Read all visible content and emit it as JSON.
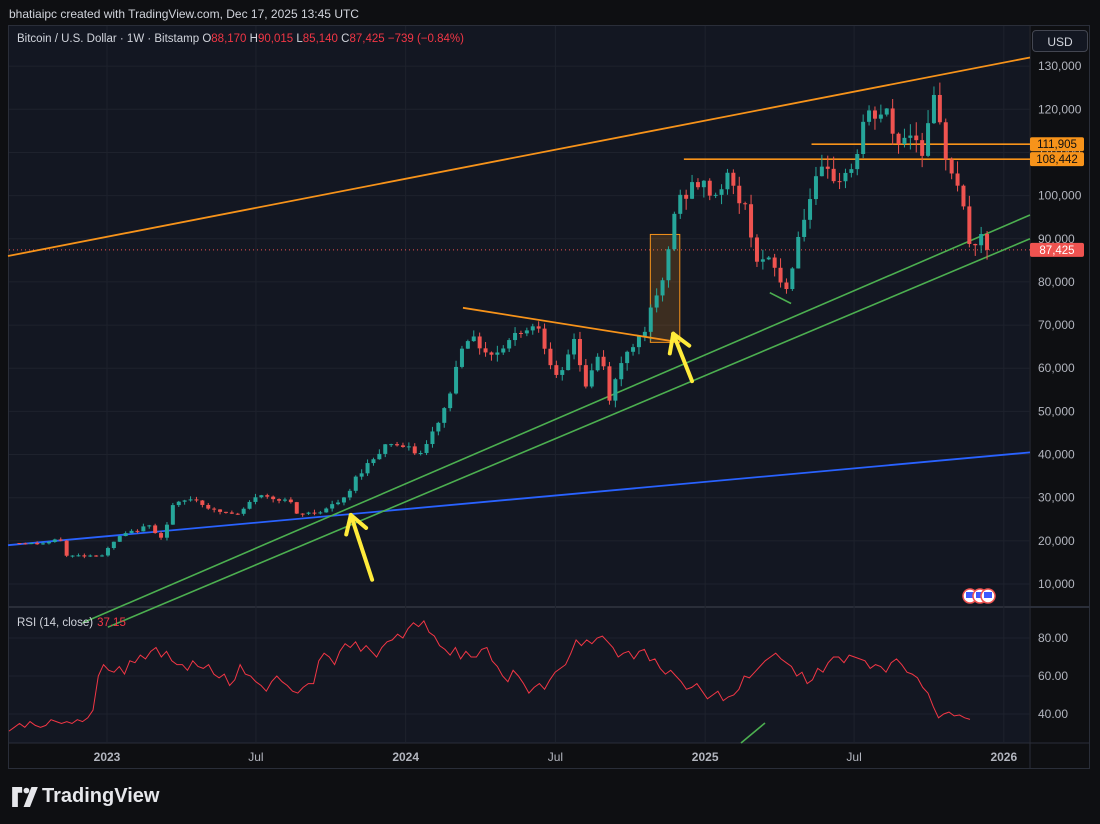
{
  "header": {
    "attribution": "bhatiaipc created with TradingView.com, Dec 17, 2025 13:45 UTC"
  },
  "legend": {
    "symbol": "Bitcoin / U.S. Dollar · 1W · Bitstamp",
    "o_label": "O",
    "o": "88,170",
    "h_label": "H",
    "h": "90,015",
    "l_label": "L",
    "l": "85,140",
    "c_label": "C",
    "c": "87,425",
    "change": "−739 (−0.84%)"
  },
  "currency_button": "USD",
  "rsi_legend": {
    "label": "RSI (14, close)",
    "value": "37.15"
  },
  "brand": {
    "name": "TradingView"
  },
  "colors": {
    "up": "#26a69a",
    "down": "#ef5350",
    "orange": "#f7931a",
    "green": "#4caf50",
    "blue": "#2962ff",
    "yellow": "#ffeb3b",
    "rsi": "#f23645"
  },
  "chart_data": {
    "type": "candlestick",
    "symbol": "Bitcoin / U.S. Dollar",
    "interval": "1W",
    "exchange": "Bitstamp",
    "price_axis": {
      "min": 0,
      "max": 135000,
      "ticks": [
        10000,
        20000,
        30000,
        40000,
        50000,
        60000,
        70000,
        80000,
        90000,
        100000,
        110000,
        120000,
        130000
      ],
      "tick_labels": [
        "10,000",
        "20,000",
        "30,000",
        "40,000",
        "50,000",
        "60,000",
        "70,000",
        "80,000",
        "90,000",
        "100,000",
        "110,000",
        "120,000",
        "130,000"
      ]
    },
    "time_axis": {
      "ticks": [
        "2022-12-31",
        "2023-07-01",
        "2023-12-31",
        "2024-07-01",
        "2024-12-31",
        "2025-07-01",
        "2025-12-31"
      ],
      "tick_labels": [
        "2023",
        "Jul",
        "2024",
        "Jul",
        "2025",
        "Jul",
        "2026"
      ]
    },
    "price_labels": [
      {
        "value": 111905,
        "label": "111,905",
        "color": "#f7931a"
      },
      {
        "value": 108442,
        "label": "108,442",
        "color": "#f7931a"
      },
      {
        "value": 87425,
        "label": "87,425",
        "color": "#ef5350"
      }
    ],
    "current_price": 87425,
    "path": [
      [
        "2022-09-15",
        19500
      ],
      [
        "2022-10-10",
        19300
      ],
      [
        "2022-11-05",
        20300
      ],
      [
        "2022-11-10",
        16500
      ],
      [
        "2022-12-25",
        16700
      ],
      [
        "2023-01-15",
        21000
      ],
      [
        "2023-02-20",
        23500
      ],
      [
        "2023-03-10",
        20500
      ],
      [
        "2023-03-20",
        28000
      ],
      [
        "2023-04-15",
        30000
      ],
      [
        "2023-05-10",
        27000
      ],
      [
        "2023-06-10",
        26000
      ],
      [
        "2023-07-01",
        30500
      ],
      [
        "2023-08-10",
        29500
      ],
      [
        "2023-08-20",
        26000
      ],
      [
        "2023-09-20",
        27000
      ],
      [
        "2023-10-20",
        30000
      ],
      [
        "2023-11-01",
        35000
      ],
      [
        "2023-12-10",
        43000
      ],
      [
        "2024-01-20",
        40000
      ],
      [
        "2024-02-20",
        52000
      ],
      [
        "2024-03-12",
        68000
      ],
      [
        "2024-04-15",
        63000
      ],
      [
        "2024-05-20",
        69000
      ],
      [
        "2024-06-10",
        70000
      ],
      [
        "2024-07-05",
        56000
      ],
      [
        "2024-07-25",
        68000
      ],
      [
        "2024-08-05",
        55000
      ],
      [
        "2024-08-25",
        64000
      ],
      [
        "2024-09-05",
        53000
      ],
      [
        "2024-09-25",
        64000
      ],
      [
        "2024-10-15",
        68000
      ],
      [
        "2024-11-10",
        80000
      ],
      [
        "2024-11-25",
        98000
      ],
      [
        "2024-12-20",
        103000
      ],
      [
        "2025-01-15",
        100000
      ],
      [
        "2025-01-25",
        105000
      ],
      [
        "2025-02-20",
        96000
      ],
      [
        "2025-03-05",
        85000
      ],
      [
        "2025-03-25",
        84000
      ],
      [
        "2025-04-08",
        77000
      ],
      [
        "2025-04-28",
        94000
      ],
      [
        "2025-05-20",
        105000
      ],
      [
        "2025-06-15",
        104000
      ],
      [
        "2025-07-01",
        107000
      ],
      [
        "2025-07-14",
        118000
      ],
      [
        "2025-08-10",
        119000
      ],
      [
        "2025-08-20",
        112000
      ],
      [
        "2025-09-10",
        115000
      ],
      [
        "2025-09-25",
        110000
      ],
      [
        "2025-10-05",
        123000
      ],
      [
        "2025-10-20",
        110000
      ],
      [
        "2025-11-05",
        103000
      ],
      [
        "2025-11-20",
        88000
      ],
      [
        "2025-12-01",
        90000
      ],
      [
        "2025-12-15",
        87425
      ]
    ],
    "annotations": {
      "orange_channel_top": {
        "from": [
          "2022-09-01",
          86000
        ],
        "to": [
          "2026-02-01",
          132000
        ]
      },
      "orange_triangle_top": {
        "from": [
          "2024-03-10",
          74000
        ],
        "to": [
          "2024-11-30",
          66000
        ]
      },
      "orange_hline_1": {
        "from": [
          "2025-05-10",
          111905
        ],
        "to": [
          "2026-02-01",
          111905
        ]
      },
      "orange_hline_2": {
        "from": [
          "2024-12-05",
          108442
        ],
        "to": [
          "2026-02-01",
          108442
        ]
      },
      "orange_box": {
        "from": [
          "2024-10-25",
          66000
        ],
        "to": [
          "2024-11-30",
          91000
        ]
      },
      "green_line_1": {
        "from": [
          "2022-12-01",
          1000
        ],
        "to": [
          "2026-02-01",
          95500
        ]
      },
      "green_line_2": {
        "from": [
          "2023-01-01",
          0
        ],
        "to": [
          "2026-02-01",
          90000
        ]
      },
      "green_short": {
        "from": [
          "2025-03-20",
          77500
        ],
        "to": [
          "2025-04-15",
          75000
        ]
      },
      "blue_line": {
        "from": [
          "2022-09-01",
          19000
        ],
        "to": [
          "2026-02-01",
          40500
        ]
      },
      "arrow_1": {
        "tail": [
          "2023-11-20",
          11000
        ],
        "head": [
          "2023-10-25",
          26000
        ]
      },
      "arrow_2": {
        "tail": [
          "2024-12-15",
          57000
        ],
        "head": [
          "2024-11-22",
          68000
        ]
      }
    },
    "rsi": {
      "name": "RSI (14, close)",
      "current": 37.15,
      "ticks": [
        40,
        60,
        80
      ],
      "tick_labels": [
        "40.00",
        "60.00",
        "80.00"
      ],
      "series": [
        31,
        33,
        35,
        33,
        36,
        34,
        33,
        34,
        37,
        36,
        35,
        36,
        35,
        37,
        36,
        38,
        42,
        60,
        66,
        63,
        62,
        65,
        61,
        68,
        67,
        71,
        69,
        73,
        75,
        70,
        73,
        68,
        66,
        66,
        63,
        68,
        65,
        64,
        66,
        61,
        59,
        61,
        55,
        58,
        66,
        61,
        60,
        57,
        55,
        52,
        57,
        60,
        57,
        55,
        52,
        51,
        54,
        56,
        56,
        68,
        72,
        70,
        66,
        73,
        77,
        75,
        78,
        73,
        76,
        73,
        70,
        75,
        78,
        79,
        82,
        80,
        85,
        88,
        86,
        89,
        83,
        81,
        76,
        74,
        71,
        75,
        69,
        73,
        70,
        70,
        74,
        75,
        68,
        65,
        60,
        57,
        63,
        60,
        56,
        51,
        54,
        56,
        53,
        58,
        62,
        64,
        66,
        72,
        79,
        76,
        79,
        77,
        80,
        81,
        78,
        75,
        70,
        72,
        73,
        69,
        73,
        74,
        68,
        69,
        64,
        61,
        63,
        60,
        57,
        53,
        54,
        56,
        52,
        48,
        50,
        52,
        47,
        49,
        50,
        53,
        60,
        59,
        62,
        65,
        68,
        70,
        72,
        69,
        67,
        65,
        60,
        62,
        56,
        58,
        64,
        62,
        67,
        70,
        70,
        67,
        71,
        70,
        69,
        68,
        64,
        66,
        65,
        62,
        67,
        69,
        66,
        62,
        61,
        59,
        54,
        51,
        44,
        38,
        40,
        41,
        39,
        39.5,
        38,
        37.15
      ]
    }
  }
}
